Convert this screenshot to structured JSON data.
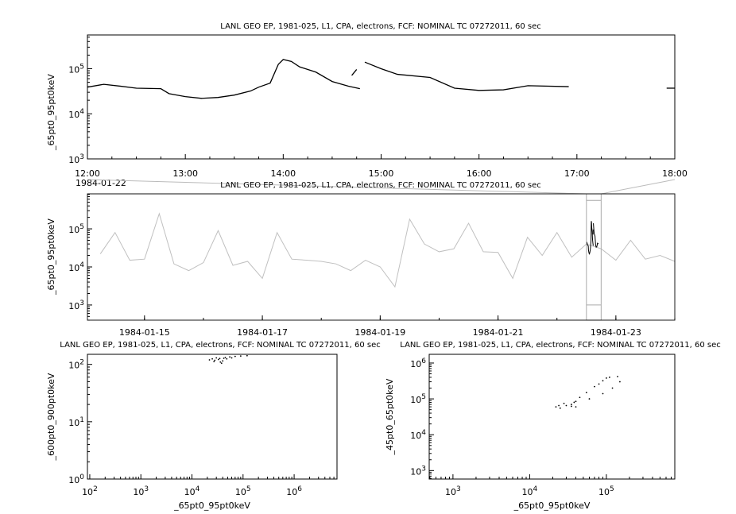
{
  "chart_data": [
    {
      "type": "line",
      "title": "LANL GEO EP, 1981-025, L1, CPA, electrons, FCF: NOMINAL TC 07272011, 60 sec",
      "ylabel": "_65pt0_95pt0keV",
      "yscale": "log",
      "ylim": [
        1000,
        560000
      ],
      "xlim": [
        "12:00",
        "18:00"
      ],
      "xticks": [
        "12:00",
        "13:00",
        "14:00",
        "15:00",
        "16:00",
        "17:00",
        "18:00"
      ],
      "xdate": "1984-01-22",
      "yticks": [
        "10^3",
        "10^4",
        "10^5"
      ],
      "color": "#000000",
      "segments": [
        [
          [
            "12:00",
            39000
          ],
          [
            "12:10",
            45000
          ],
          [
            "12:20",
            41000
          ],
          [
            "12:30",
            37000
          ],
          [
            "12:45",
            36000
          ],
          [
            "12:50",
            28000
          ],
          [
            "13:00",
            24000
          ],
          [
            "13:10",
            22000
          ],
          [
            "13:20",
            23000
          ],
          [
            "13:30",
            26000
          ],
          [
            "13:40",
            32000
          ],
          [
            "13:45",
            39000
          ],
          [
            "13:52",
            48000
          ],
          [
            "13:57",
            125000
          ],
          [
            "14:00",
            160000
          ],
          [
            "14:05",
            145000
          ],
          [
            "14:10",
            110000
          ],
          [
            "14:20",
            84000
          ],
          [
            "14:30",
            52000
          ],
          [
            "14:40",
            41000
          ],
          [
            "14:47",
            36000
          ]
        ],
        [
          [
            "14:42",
            71000
          ],
          [
            "14:45",
            96000
          ]
        ],
        [
          [
            "14:50",
            140000
          ],
          [
            "15:00",
            100000
          ],
          [
            "15:10",
            75000
          ],
          [
            "15:30",
            64000
          ],
          [
            "15:45",
            37000
          ],
          [
            "16:00",
            33000
          ],
          [
            "16:15",
            34000
          ],
          [
            "16:30",
            42000
          ],
          [
            "16:55",
            40000
          ]
        ],
        [
          [
            "17:55",
            37000
          ],
          [
            "18:00",
            37000
          ]
        ]
      ]
    },
    {
      "type": "line",
      "title": "LANL GEO EP, 1981-025, L1, CPA, electrons, FCF: NOMINAL TC 07272011, 60 sec",
      "ylabel": "_65pt0_95pt0keV",
      "yscale": "log",
      "ylim": [
        400,
        830000
      ],
      "xlim": [
        "1984-01-14T00:45",
        "1984-01-24T00:00"
      ],
      "xticks": [
        "1984-01-15",
        "1984-01-17",
        "1984-01-19",
        "1984-01-21",
        "1984-01-23"
      ],
      "yticks": [
        "10^3",
        "10^4",
        "10^5"
      ],
      "color": "#c0c0c0",
      "highlight_color": "#000000",
      "highlight_range": [
        "1984-01-22T12:00",
        "1984-01-22T18:00"
      ],
      "x_start": "1984-01-14T00:00",
      "x_step_hours": 6,
      "values": [
        18000,
        22000,
        80000,
        15000,
        16000,
        250000,
        12000,
        8000,
        13000,
        90000,
        11000,
        14000,
        5000,
        80000,
        16000,
        15000,
        14000,
        12000,
        8000,
        15000,
        10000,
        3000,
        180000,
        40000,
        25000,
        30000,
        140000,
        25000,
        24000,
        5000,
        60000,
        20000,
        80000,
        18000,
        40000,
        30000,
        15000,
        50000,
        16000,
        20000,
        14000
      ]
    },
    {
      "type": "scatter",
      "title": "LANL GEO EP, 1981-025, L1, CPA, electrons, FCF: NOMINAL TC 07272011, 60 sec",
      "xlabel": "_65pt0_95pt0keV",
      "ylabel": "_600pt0_900pt0keV",
      "xscale": "log",
      "yscale": "log",
      "xlim": [
        90,
        6900000
      ],
      "ylim": [
        1,
        150
      ],
      "xticks": [
        "10^2",
        "10^3",
        "10^4",
        "10^5",
        "10^6"
      ],
      "yticks": [
        "10^0",
        "10^1",
        "10^2"
      ],
      "points": [
        [
          22000,
          120
        ],
        [
          25000,
          125
        ],
        [
          28000,
          118
        ],
        [
          30000,
          130
        ],
        [
          33000,
          122
        ],
        [
          36000,
          110
        ],
        [
          38000,
          105
        ],
        [
          40000,
          115
        ],
        [
          42000,
          128
        ],
        [
          45000,
          132
        ],
        [
          55000,
          135
        ],
        [
          70000,
          138
        ],
        [
          90000,
          140
        ],
        [
          120000,
          142
        ],
        [
          27000,
          112
        ],
        [
          35000,
          127
        ],
        [
          48000,
          125
        ],
        [
          60000,
          130
        ]
      ]
    },
    {
      "type": "scatter",
      "title": "LANL GEO EP, 1981-025, L1, CPA, electrons, FCF: NOMINAL TC 07272011, 60 sec",
      "xlabel": "_65pt0_95pt0keV",
      "ylabel": "_45pt0_65pt0keV",
      "xscale": "log",
      "yscale": "log",
      "xlim": [
        490,
        780000
      ],
      "ylim": [
        580,
        1750000
      ],
      "xticks": [
        "10^3",
        "10^4",
        "10^5"
      ],
      "yticks": [
        "10^3",
        "10^4",
        "10^5",
        "10^6"
      ],
      "points": [
        [
          22000,
          60000
        ],
        [
          25000,
          55000
        ],
        [
          30000,
          65000
        ],
        [
          35000,
          70000
        ],
        [
          40000,
          60000
        ],
        [
          38000,
          80000
        ],
        [
          45000,
          110000
        ],
        [
          55000,
          150000
        ],
        [
          70000,
          220000
        ],
        [
          90000,
          320000
        ],
        [
          110000,
          400000
        ],
        [
          140000,
          420000
        ],
        [
          150000,
          300000
        ],
        [
          120000,
          200000
        ],
        [
          90000,
          140000
        ],
        [
          60000,
          100000
        ],
        [
          40000,
          85000
        ],
        [
          28000,
          75000
        ],
        [
          24000,
          65000
        ],
        [
          35000,
          62000
        ],
        [
          100000,
          380000
        ],
        [
          80000,
          260000
        ]
      ]
    }
  ]
}
